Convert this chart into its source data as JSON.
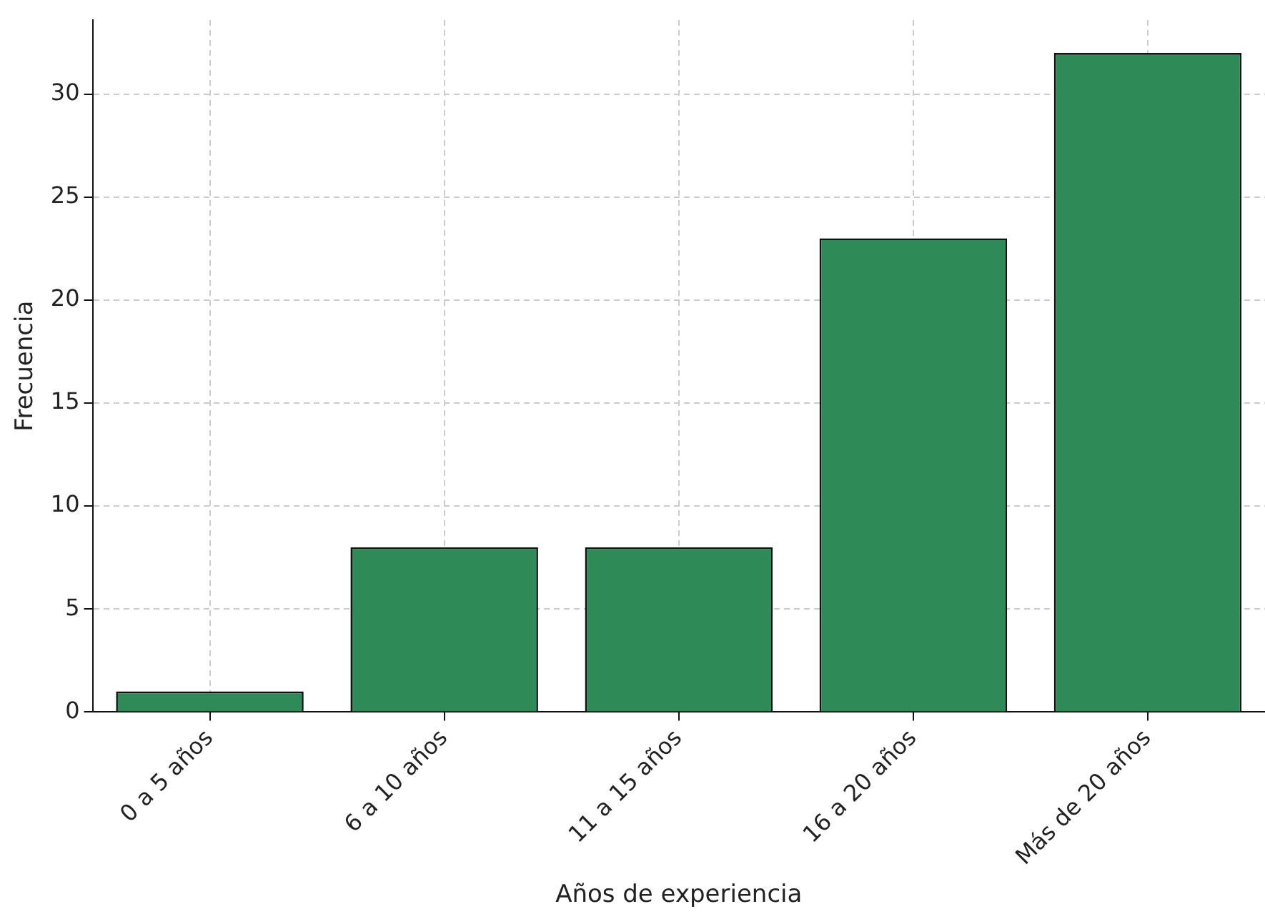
{
  "chart_data": {
    "type": "bar",
    "xlabel": "Años de experiencia",
    "ylabel": "Frecuencia",
    "categories": [
      "0 a 5 años",
      "6 a 10 años",
      "11 a 15 años",
      "16 a 20 años",
      "Más de 20 años"
    ],
    "values": [
      1,
      8,
      8,
      23,
      32
    ],
    "color": "#2e8b57",
    "ylim": [
      0,
      33.6
    ],
    "yticks": [
      0,
      5,
      10,
      15,
      20,
      25,
      30
    ],
    "grid": true
  }
}
